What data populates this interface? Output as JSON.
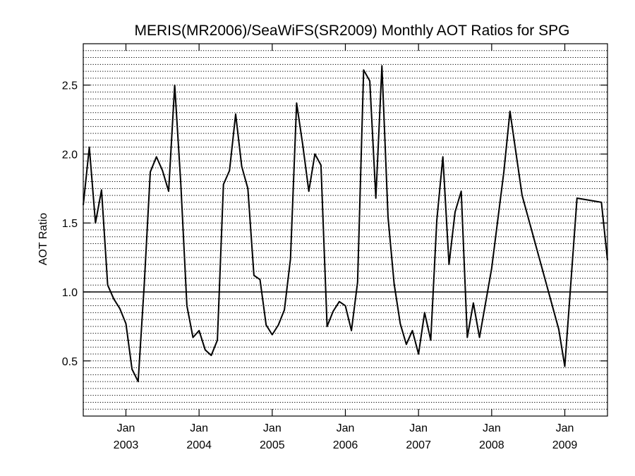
{
  "chart_data": {
    "type": "line",
    "title": "MERIS(MR2006)/SeaWiFS(SR2009) Monthly AOT Ratios for SPG",
    "xlabel": "",
    "ylabel": "AOT Ratio",
    "xlim": [
      "2002-06",
      "2009-08"
    ],
    "ylim": [
      0.1,
      2.8
    ],
    "yticks": [
      0.5,
      1.0,
      1.5,
      2.0,
      2.5
    ],
    "ytick_labels": [
      "0.5",
      "1.0",
      "1.5",
      "2.0",
      "2.5"
    ],
    "xticks": [
      {
        "date": "2003-01",
        "month": "Jan",
        "year": "2003"
      },
      {
        "date": "2004-01",
        "month": "Jan",
        "year": "2004"
      },
      {
        "date": "2005-01",
        "month": "Jan",
        "year": "2005"
      },
      {
        "date": "2006-01",
        "month": "Jan",
        "year": "2006"
      },
      {
        "date": "2007-01",
        "month": "Jan",
        "year": "2007"
      },
      {
        "date": "2008-01",
        "month": "Jan",
        "year": "2008"
      },
      {
        "date": "2009-01",
        "month": "Jan",
        "year": "2009"
      }
    ],
    "grid": "horizontal-dotted",
    "reference_line": 1.0,
    "series": [
      {
        "color": "#000000",
        "points": [
          [
            "2002-06",
            1.63
          ],
          [
            "2002-07",
            2.05
          ],
          [
            "2002-08",
            1.5
          ],
          [
            "2002-09",
            1.74
          ],
          [
            "2002-10",
            1.05
          ],
          [
            "2002-11",
            0.95
          ],
          [
            "2002-12",
            0.88
          ],
          [
            "2003-01",
            0.77
          ],
          [
            "2003-02",
            0.44
          ],
          [
            "2003-03",
            0.35
          ],
          [
            "2003-04",
            1.05
          ],
          [
            "2003-05",
            1.87
          ],
          [
            "2003-06",
            1.98
          ],
          [
            "2003-07",
            1.88
          ],
          [
            "2003-08",
            1.73
          ],
          [
            "2003-09",
            2.5
          ],
          [
            "2003-10",
            1.79
          ],
          [
            "2003-11",
            0.9
          ],
          [
            "2003-12",
            0.67
          ],
          [
            "2004-01",
            0.72
          ],
          [
            "2004-02",
            0.58
          ],
          [
            "2004-03",
            0.54
          ],
          [
            "2004-04",
            0.65
          ],
          [
            "2004-05",
            1.78
          ],
          [
            "2004-06",
            1.88
          ],
          [
            "2004-07",
            2.29
          ],
          [
            "2004-08",
            1.91
          ],
          [
            "2004-09",
            1.75
          ],
          [
            "2004-10",
            1.12
          ],
          [
            "2004-11",
            1.09
          ],
          [
            "2004-12",
            0.76
          ],
          [
            "2005-01",
            0.69
          ],
          [
            "2005-02",
            0.76
          ],
          [
            "2005-03",
            0.87
          ],
          [
            "2005-04",
            1.24
          ],
          [
            "2005-05",
            2.37
          ],
          [
            "2005-06",
            2.07
          ],
          [
            "2005-07",
            1.73
          ],
          [
            "2005-08",
            2.0
          ],
          [
            "2005-09",
            1.92
          ],
          [
            "2005-10",
            0.75
          ],
          [
            "2005-11",
            0.86
          ],
          [
            "2005-12",
            0.93
          ],
          [
            "2006-01",
            0.9
          ],
          [
            "2006-02",
            0.72
          ],
          [
            "2006-03",
            1.07
          ],
          [
            "2006-04",
            2.61
          ],
          [
            "2006-05",
            2.53
          ],
          [
            "2006-06",
            1.68
          ],
          [
            "2006-07",
            2.64
          ],
          [
            "2006-08",
            1.54
          ],
          [
            "2006-09",
            1.06
          ],
          [
            "2006-10",
            0.77
          ],
          [
            "2006-11",
            0.62
          ],
          [
            "2006-12",
            0.72
          ],
          [
            "2007-01",
            0.55
          ],
          [
            "2007-02",
            0.85
          ],
          [
            "2007-03",
            0.65
          ],
          [
            "2007-04",
            1.52
          ],
          [
            "2007-05",
            1.98
          ],
          [
            "2007-06",
            1.2
          ],
          [
            "2007-07",
            1.58
          ],
          [
            "2007-08",
            1.73
          ],
          [
            "2007-09",
            0.67
          ],
          [
            "2007-10",
            0.92
          ],
          [
            "2007-11",
            0.67
          ],
          [
            "2008-01",
            1.17
          ],
          [
            "2008-03",
            1.87
          ],
          [
            "2008-04",
            2.31
          ],
          [
            "2008-06",
            1.7
          ],
          [
            "2008-12",
            0.73
          ],
          [
            "2009-01",
            0.46
          ],
          [
            "2009-03",
            1.68
          ],
          [
            "2009-07",
            1.65
          ],
          [
            "2009-08",
            1.23
          ]
        ]
      }
    ]
  }
}
